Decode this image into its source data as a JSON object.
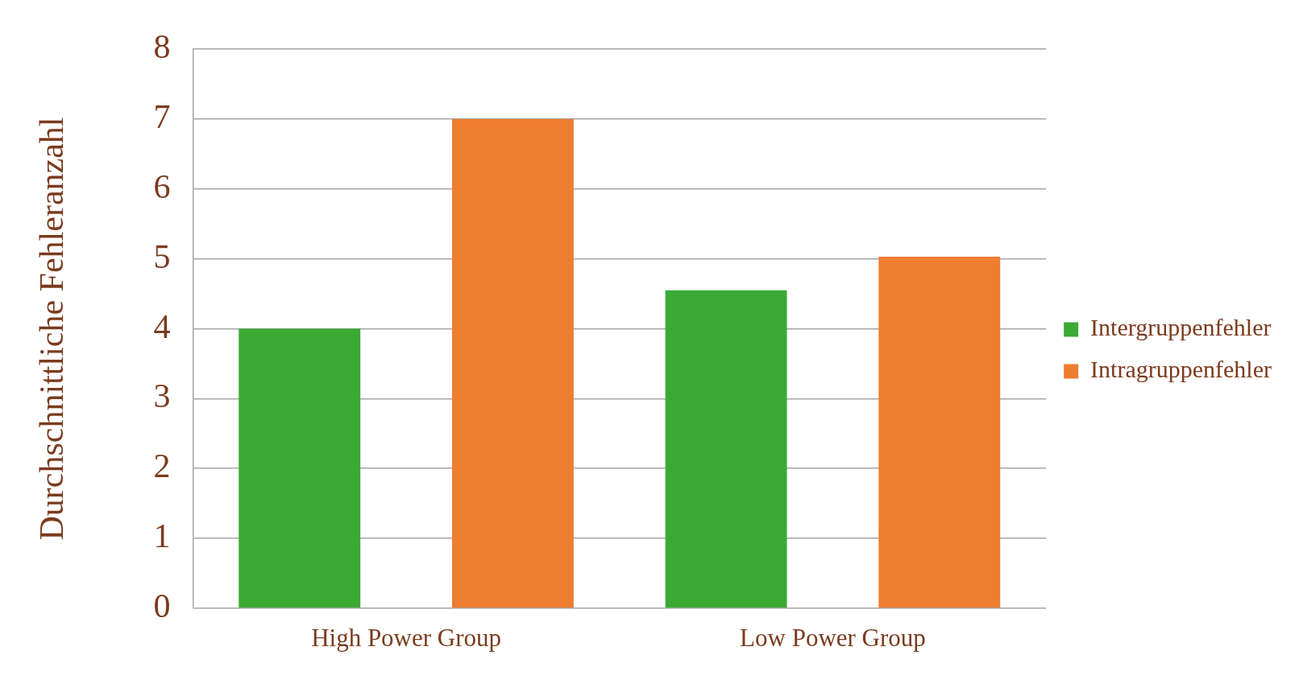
{
  "chart_data": {
    "type": "bar",
    "ylabel": "Durchschnittliche Fehleranzahl",
    "categories": [
      "High Power Group",
      "Low Power Group"
    ],
    "series": [
      {
        "name": "Intergruppenfehler",
        "color": "#3aaa35",
        "values": [
          4.0,
          4.55
        ]
      },
      {
        "name": "Intragruppenfehler",
        "color": "#ed7d31",
        "values": [
          7.0,
          5.03
        ]
      }
    ],
    "ylim": [
      0,
      8
    ],
    "yticks": [
      0,
      1,
      2,
      3,
      4,
      5,
      6,
      7,
      8
    ],
    "grid": "y",
    "legend": "right"
  }
}
